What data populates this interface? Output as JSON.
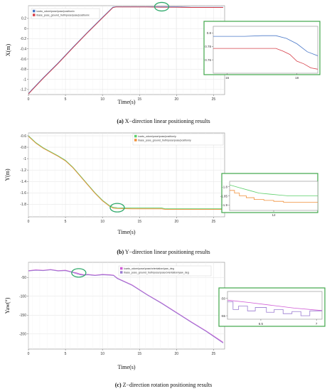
{
  "colors": {
    "blue": "#4a78c8",
    "red": "#d6404a",
    "green": "#5ccf6a",
    "orange": "#f0903a",
    "magenta": "#d05ad6",
    "purple": "#9a7ad0",
    "ellipse": "#2fa96b",
    "inset_border": "#3fa64a",
    "grid": "#e2e2e2"
  },
  "chart_data": [
    {
      "type": "line",
      "id": "a",
      "xlabel": "Time(s)",
      "ylabel": "X(m)",
      "xlim": [
        0,
        26.5
      ],
      "ylim": [
        -1.3,
        0.45
      ],
      "xticks": [
        0,
        5,
        10,
        15,
        20,
        25
      ],
      "yticks": [
        0.2,
        0,
        -0.2,
        -0.4,
        -0.6,
        -0.8,
        -1,
        -1.2
      ],
      "ytick_labels": [
        "0.2",
        "0",
        "-0.2",
        "-0.4",
        "-0.6",
        "-0.8",
        "-1",
        "-1.2"
      ],
      "grid": true,
      "legend_position": "top-left",
      "series": [
        {
          "name": "/carto_odom/pose/pose/position/x",
          "color": "blue",
          "x": [
            0,
            0.5,
            2,
            4,
            6,
            8,
            10,
            11.4,
            11.8,
            12.5,
            14,
            16,
            18,
            20,
            22,
            24,
            26.3
          ],
          "y": [
            -1.28,
            -1.2,
            -0.97,
            -0.68,
            -0.37,
            -0.07,
            0.22,
            0.42,
            0.43,
            0.43,
            0.43,
            0.43,
            0.43,
            0.43,
            0.42,
            0.42,
            0.42
          ]
        },
        {
          "name": "/base_pose_ground_truth/pose/pose/position/x",
          "color": "red",
          "x": [
            0,
            0.5,
            2,
            4,
            6,
            8,
            10,
            11.4,
            11.8,
            12.5,
            14,
            16,
            18,
            20,
            22,
            24,
            26.3
          ],
          "y": [
            -1.29,
            -1.21,
            -0.98,
            -0.69,
            -0.38,
            -0.08,
            0.21,
            0.41,
            0.425,
            0.425,
            0.425,
            0.425,
            0.42,
            0.42,
            0.415,
            0.415,
            0.415
          ]
        }
      ],
      "highlight": {
        "x": 18,
        "y": 0.43
      }
    },
    {
      "type": "line",
      "id": "a-inset",
      "xlim": [
        15.6,
        18.6
      ],
      "ylim": [
        0.74,
        0.81
      ],
      "xticks": [
        16,
        18
      ],
      "yticks": [
        0.8,
        0.78,
        0.76
      ],
      "ytick_labels": [
        "0.8",
        "0.78",
        "0.76"
      ],
      "series": [
        {
          "color": "blue",
          "x": [
            15.6,
            16,
            16.5,
            17,
            17.4,
            17.7,
            18,
            18.3,
            18.6
          ],
          "y": [
            0.795,
            0.795,
            0.795,
            0.796,
            0.796,
            0.792,
            0.784,
            0.772,
            0.766
          ]
        },
        {
          "color": "red",
          "x": [
            15.6,
            16,
            16.5,
            17,
            17.4,
            17.6,
            17.8,
            18,
            18.2,
            18.4,
            18.6
          ],
          "y": [
            0.777,
            0.777,
            0.777,
            0.777,
            0.777,
            0.773,
            0.768,
            0.758,
            0.754,
            0.748,
            0.746
          ]
        }
      ]
    },
    {
      "type": "line",
      "id": "b",
      "xlabel": "Time(s)",
      "ylabel": "Y(m)",
      "xlim": [
        0,
        26.5
      ],
      "ylim": [
        -2.02,
        -0.55
      ],
      "xticks": [
        0,
        5,
        10,
        15,
        20,
        25
      ],
      "yticks": [
        -0.6,
        -0.8,
        -1,
        -1.2,
        -1.4,
        -1.6,
        -1.8
      ],
      "ytick_labels": [
        "-0.6",
        "-0.8",
        "-1",
        "-1.2",
        "-1.4",
        "-1.6",
        "-1.8"
      ],
      "grid": true,
      "legend_position": "top-right",
      "series": [
        {
          "name": "/carto_odom/pose/pose/position/y",
          "color": "green",
          "x": [
            0,
            1,
            2,
            3,
            4,
            5,
            6,
            7,
            8,
            9,
            10,
            11,
            11.5,
            12,
            14,
            16,
            18,
            18.5,
            20,
            22,
            24,
            26.3
          ],
          "y": [
            -0.6,
            -0.72,
            -0.81,
            -0.88,
            -0.95,
            -1.03,
            -1.15,
            -1.3,
            -1.45,
            -1.6,
            -1.73,
            -1.83,
            -1.855,
            -1.86,
            -1.865,
            -1.865,
            -1.865,
            -1.88,
            -1.88,
            -1.88,
            -1.88,
            -1.88
          ]
        },
        {
          "name": "/base_pose_ground_truth/pose/pose/position/y",
          "color": "orange",
          "x": [
            0,
            1,
            2,
            3,
            4,
            5,
            6,
            7,
            8,
            9,
            10,
            11,
            11.5,
            12,
            14,
            16,
            18,
            18.5,
            20,
            22,
            24,
            26.3
          ],
          "y": [
            -0.61,
            -0.73,
            -0.82,
            -0.89,
            -0.96,
            -1.04,
            -1.16,
            -1.31,
            -1.46,
            -1.61,
            -1.74,
            -1.84,
            -1.87,
            -1.875,
            -1.88,
            -1.88,
            -1.88,
            -1.89,
            -1.89,
            -1.89,
            -1.89,
            -1.89
          ]
        }
      ],
      "highlight": {
        "x": 12,
        "y": -1.86
      }
    },
    {
      "type": "line",
      "id": "b-inset",
      "xlim": [
        11.55,
        12.45
      ],
      "ylim": [
        -1.93,
        -1.77
      ],
      "xticks": [
        12
      ],
      "yticks": [
        -1.8,
        -1.85,
        -1.9
      ],
      "ytick_labels": [
        "-1.8",
        "-1.85",
        "-1.9"
      ],
      "series": [
        {
          "color": "green",
          "x": [
            11.55,
            11.65,
            11.75,
            11.85,
            11.95,
            12.05,
            12.15,
            12.3,
            12.45
          ],
          "y": [
            -1.79,
            -1.805,
            -1.82,
            -1.835,
            -1.84,
            -1.845,
            -1.85,
            -1.85,
            -1.85
          ]
        },
        {
          "color": "orange",
          "x": [
            11.55,
            11.6,
            11.6,
            11.65,
            11.65,
            11.72,
            11.72,
            11.8,
            11.8,
            11.9,
            11.9,
            12.0,
            12.0,
            12.1,
            12.1,
            12.45
          ],
          "y": [
            -1.82,
            -1.82,
            -1.835,
            -1.835,
            -1.85,
            -1.85,
            -1.86,
            -1.86,
            -1.87,
            -1.87,
            -1.875,
            -1.875,
            -1.88,
            -1.88,
            -1.885,
            -1.885
          ]
        }
      ]
    },
    {
      "type": "line",
      "id": "c",
      "xlabel": "Time(s)",
      "ylabel": "Yaw(°)",
      "xlim": [
        0,
        26.5
      ],
      "ylim": [
        -240,
        -10
      ],
      "xticks": [
        0,
        5,
        10,
        15,
        20,
        25
      ],
      "yticks": [
        -50,
        -100,
        -150,
        -200
      ],
      "ytick_labels": [
        "-50",
        "-100",
        "-150",
        "-200"
      ],
      "grid": true,
      "legend_position": "top-right",
      "series": [
        {
          "name": "/carto_odom/pose/pose/orientation/yaw_deg",
          "color": "magenta",
          "x": [
            0,
            1,
            2,
            3,
            4,
            5,
            6,
            6.5,
            7,
            7.5,
            8,
            9,
            10,
            11,
            11.5,
            12,
            14,
            16,
            18,
            20,
            22,
            24,
            26.3
          ],
          "y": [
            -32,
            -30,
            -31,
            -29,
            -32,
            -31,
            -36,
            -38,
            -41,
            -43,
            -42,
            -44,
            -42,
            -43,
            -44,
            -52,
            -70,
            -95,
            -118,
            -143,
            -168,
            -192,
            -222
          ]
        },
        {
          "name": "/base_pose_ground_truth/pose/pose/orientation/yaw_deg",
          "color": "purple",
          "x": [
            0,
            1,
            2,
            3,
            4,
            5,
            6,
            6.5,
            7,
            7.5,
            8,
            9,
            10,
            11,
            11.5,
            12,
            14,
            16,
            18,
            20,
            22,
            24,
            26.3
          ],
          "y": [
            -33,
            -31,
            -32,
            -30,
            -33,
            -32,
            -37,
            -40,
            -43,
            -44,
            -43,
            -45,
            -43,
            -44,
            -45,
            -53,
            -71,
            -96,
            -119,
            -144,
            -169,
            -193,
            -224
          ]
        }
      ],
      "highlight": {
        "x": 6.8,
        "y": -38
      }
    },
    {
      "type": "line",
      "id": "c-inset",
      "xlim": [
        6.2,
        7.05
      ],
      "ylim": [
        -56,
        -48
      ],
      "xticks": [
        6.5,
        7
      ],
      "yticks": [
        -50,
        -55
      ],
      "ytick_labels": [
        "-50",
        "-55"
      ],
      "series": [
        {
          "color": "magenta",
          "x": [
            6.2,
            6.4,
            6.6,
            6.8,
            7.05
          ],
          "y": [
            -50.5,
            -51.2,
            -52,
            -52.8,
            -53.5
          ]
        },
        {
          "color": "purple",
          "x": [
            6.2,
            6.25,
            6.25,
            6.3,
            6.3,
            6.38,
            6.38,
            6.45,
            6.45,
            6.55,
            6.55,
            6.62,
            6.62,
            6.7,
            6.7,
            6.78,
            6.78,
            6.86,
            6.86,
            6.94,
            6.94,
            7.05
          ],
          "y": [
            -51,
            -51,
            -53.2,
            -53.2,
            -52.2,
            -52.2,
            -53.6,
            -53.6,
            -52.6,
            -52.6,
            -54,
            -54,
            -53.2,
            -53.2,
            -54.4,
            -54.4,
            -53.8,
            -53.8,
            -55,
            -55,
            -53.6,
            -53.6
          ]
        }
      ]
    }
  ],
  "captions": [
    {
      "tag": "(a)",
      "text": "X−direction linear positioning results"
    },
    {
      "tag": "(b)",
      "text": "Y−direction linear positioning results"
    },
    {
      "tag": "(c)",
      "text": "Z−direction rotation positioning results"
    }
  ]
}
